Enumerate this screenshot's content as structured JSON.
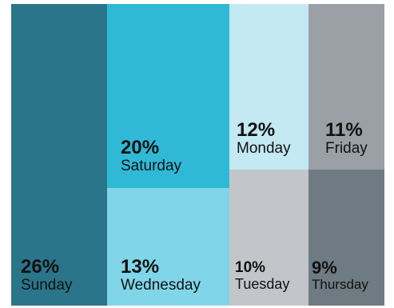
{
  "chart_data": {
    "type": "treemap",
    "title": "",
    "tiles": [
      {
        "category": "Sunday",
        "percent_label": "26%",
        "value": 26,
        "color": "#2a7589"
      },
      {
        "category": "Saturday",
        "percent_label": "20%",
        "value": 20,
        "color": "#30b9d6"
      },
      {
        "category": "Wednesday",
        "percent_label": "13%",
        "value": 13,
        "color": "#80d5e8"
      },
      {
        "category": "Monday",
        "percent_label": "12%",
        "value": 12,
        "color": "#c3e9f3"
      },
      {
        "category": "Tuesday",
        "percent_label": "10%",
        "value": 10,
        "color": "#c2c6ca"
      },
      {
        "category": "Friday",
        "percent_label": "11%",
        "value": 11,
        "color": "#9ba0a6"
      },
      {
        "category": "Thursday",
        "percent_label": "9%",
        "value": 9,
        "color": "#6e7b82"
      }
    ]
  }
}
